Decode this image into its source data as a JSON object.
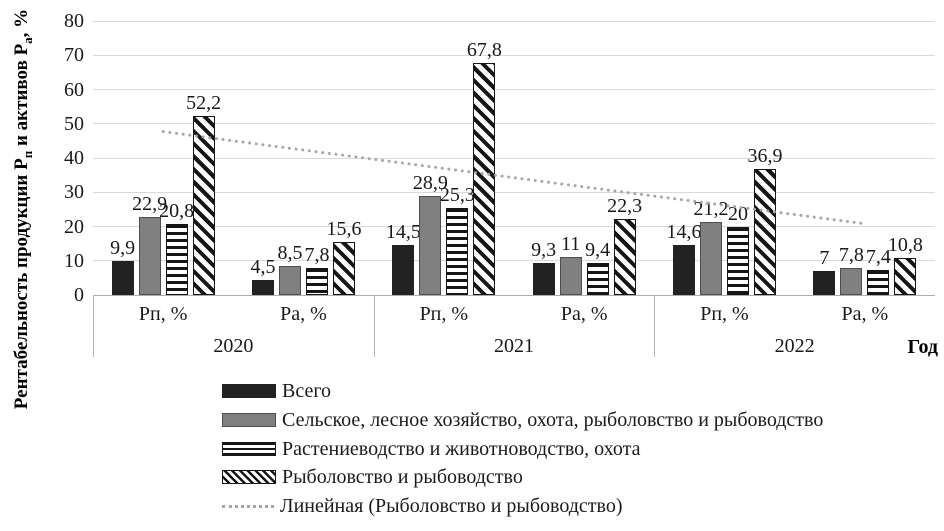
{
  "chart_data": {
    "type": "bar",
    "title": "",
    "ylabel_parts": {
      "p1": "Рентабельность продукции Р",
      "s1": "п",
      "p2": " и активов Р",
      "s2": "а",
      "p3": ", %"
    },
    "ylabel_plain": "Рентабельность продукции Рп и активов Ра, %",
    "xlabel": "Год",
    "ylim": [
      0,
      80
    ],
    "ytick_step": 10,
    "yticks": [
      "0",
      "10",
      "20",
      "30",
      "40",
      "50",
      "60",
      "70",
      "80"
    ],
    "grid": true,
    "legend_position": "bottom-left",
    "categories": [
      {
        "metric": "Рп, %",
        "year": "2020",
        "labels": [
          "9,9",
          "22,9",
          "20,8",
          "52,2"
        ]
      },
      {
        "metric": "Ра, %",
        "year": "2020",
        "labels": [
          "4,5",
          "8,5",
          "7,8",
          "15,6"
        ]
      },
      {
        "metric": "Рп, %",
        "year": "2021",
        "labels": [
          "14,5",
          "28,9",
          "25,3",
          "67,8"
        ]
      },
      {
        "metric": "Ра, %",
        "year": "2021",
        "labels": [
          "9,3",
          "11",
          "9,4",
          "22,3"
        ]
      },
      {
        "metric": "Рп, %",
        "year": "2022",
        "labels": [
          "14,6",
          "21,2",
          "20",
          "36,9"
        ]
      },
      {
        "metric": "Ра, %",
        "year": "2022",
        "labels": [
          "7",
          "7,8",
          "7,4",
          "10,8"
        ]
      }
    ],
    "years": [
      {
        "label": "2020",
        "categories": 2
      },
      {
        "label": "2021",
        "categories": 2
      },
      {
        "label": "2022",
        "categories": 2
      }
    ],
    "series": [
      {
        "name": "Всего",
        "pattern": "solid-black",
        "values": [
          9.9,
          4.5,
          14.5,
          9.3,
          14.6,
          7
        ]
      },
      {
        "name": "Сельское, лесное хозяйство, охота, рыболовство и рыбоводство",
        "pattern": "solid-gray",
        "values": [
          22.9,
          8.5,
          28.9,
          11,
          21.2,
          7.8
        ]
      },
      {
        "name": "Растениеводство и животноводство, охота",
        "pattern": "hstripe",
        "values": [
          20.8,
          7.8,
          25.3,
          9.4,
          20,
          7.4
        ]
      },
      {
        "name": "Рыболовство и рыбоводство",
        "pattern": "dstripe",
        "values": [
          52.2,
          15.6,
          67.8,
          22.3,
          36.9,
          10.8
        ]
      }
    ],
    "trendline": {
      "name": "Линейная (Рыболовство и рыбоводство)",
      "of_series": "Рыболовство и рыбоводство",
      "start_value": 47.7,
      "end_value": 20.8
    },
    "colors": {
      "bar_black": "#222222",
      "bar_gray": "#808080",
      "pattern_stroke": "#161616",
      "grid": "#d9d9d9",
      "axis": "#adadad",
      "trend": "#a6a6a6",
      "text": "#1a1a1a"
    }
  }
}
